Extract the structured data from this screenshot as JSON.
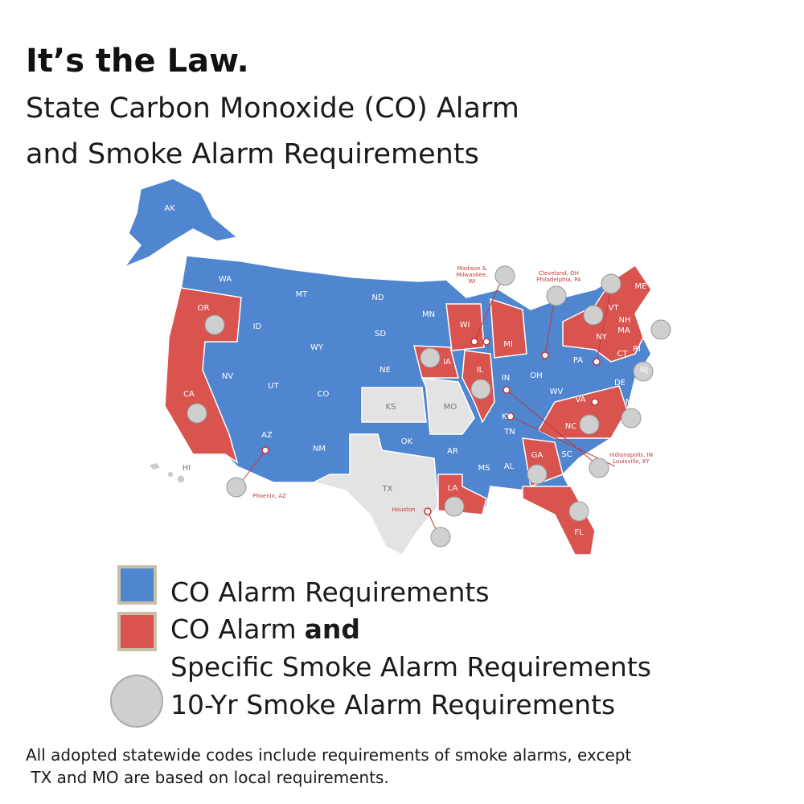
{
  "header": {
    "title": "It’s the Law.",
    "subtitle_lines": [
      "State Carbon Monoxide (CO) Alarm",
      "and Smoke Alarm Requirements"
    ]
  },
  "map": {
    "state_labels": [
      "AK",
      "HI",
      "WA",
      "OR",
      "CA",
      "ID",
      "NV",
      "MT",
      "WY",
      "UT",
      "AZ",
      "CO",
      "NM",
      "ND",
      "SD",
      "NE",
      "KS",
      "OK",
      "TX",
      "MN",
      "IA",
      "MO",
      "AR",
      "LA",
      "WI",
      "IL",
      "MI",
      "IN",
      "OH",
      "KY",
      "TN",
      "MS",
      "AL",
      "GA",
      "FL",
      "SC",
      "NC",
      "VA",
      "WV",
      "PA",
      "NY",
      "VT",
      "NH",
      "ME",
      "MA",
      "RI",
      "CT",
      "NJ",
      "DE",
      "MD"
    ],
    "city_notes": [
      [
        "Madison &",
        "Milwaukee,",
        "WI"
      ],
      [
        "Cleveland, OH",
        "Philadelphia, PA"
      ],
      [
        "Indianapolis, IN",
        "Louisville, KY"
      ],
      [
        "Phoenix, AZ"
      ],
      [
        "Houston"
      ]
    ]
  },
  "legend": {
    "items": [
      "CO Alarm Requirements",
      "CO Alarm",
      "and",
      "Specific Smoke Alarm Requirements",
      "10-Yr Smoke Alarm Requirements"
    ]
  },
  "footnote": [
    "All adopted statewide codes include requirements of smoke alarms, except",
    " TX and MO are based on local requirements."
  ]
}
